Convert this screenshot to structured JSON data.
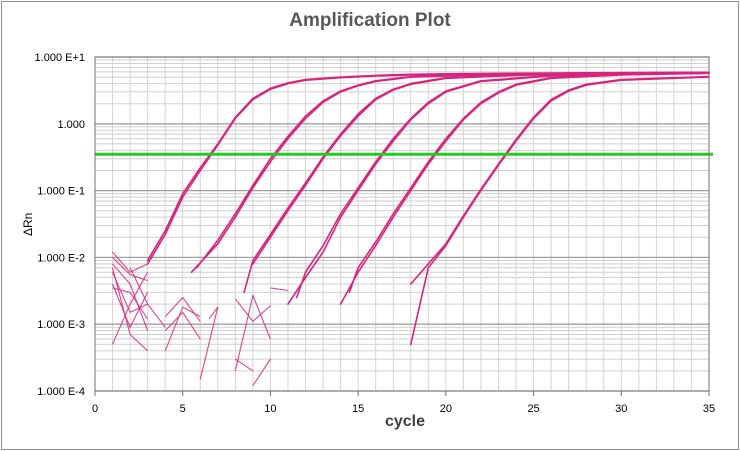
{
  "chart_data": {
    "type": "line",
    "title": "Amplification Plot",
    "xlabel": "cycle",
    "ylabel": "ΔRn",
    "xlim": [
      0,
      35
    ],
    "ylim": [
      0.0001,
      10
    ],
    "y_scale": "log",
    "grid": true,
    "x_ticks": [
      0,
      5,
      10,
      15,
      20,
      25,
      30,
      35
    ],
    "x_tick_labels": [
      "0",
      "5",
      "10",
      "15",
      "20",
      "25",
      "30",
      "35"
    ],
    "y_ticks": [
      0.0001,
      0.001,
      0.01,
      0.1,
      1,
      10
    ],
    "y_tick_labels": [
      "1.000 E-4",
      "1.000 E-3",
      "1.000 E-2",
      "1.000 E-1",
      "1.000",
      "1.000 E+1"
    ],
    "threshold": {
      "value": 0.35,
      "color": "#22cc22"
    },
    "curve_color": "#d6247f",
    "series": [
      {
        "x": [
          3,
          4,
          5,
          6,
          7,
          8,
          9,
          10,
          11,
          12,
          14,
          16,
          18,
          20,
          24,
          28,
          35
        ],
        "y": [
          0.008,
          0.022,
          0.08,
          0.2,
          0.48,
          1.2,
          2.3,
          3.3,
          4.0,
          4.5,
          4.9,
          5.2,
          5.4,
          5.5,
          5.6,
          5.7,
          5.8
        ]
      },
      {
        "x": [
          3,
          4,
          5,
          6,
          7,
          8,
          9,
          10,
          11,
          12,
          14,
          16,
          18,
          20,
          24,
          28,
          35
        ],
        "y": [
          0.009,
          0.025,
          0.09,
          0.22,
          0.5,
          1.25,
          2.4,
          3.4,
          4.1,
          4.6,
          5.0,
          5.3,
          5.5,
          5.6,
          5.7,
          5.8,
          5.9
        ]
      },
      {
        "x": [
          5.5,
          7,
          8,
          9,
          10,
          11,
          12,
          13,
          14,
          15,
          16,
          18,
          22,
          26,
          35
        ],
        "y": [
          0.006,
          0.016,
          0.04,
          0.11,
          0.27,
          0.6,
          1.2,
          2.1,
          3.0,
          3.7,
          4.3,
          5.0,
          5.4,
          5.6,
          5.8
        ]
      },
      {
        "x": [
          5.8,
          7,
          8,
          9,
          10,
          11,
          12,
          13,
          14,
          15,
          16,
          18,
          22,
          26,
          35
        ],
        "y": [
          0.007,
          0.018,
          0.045,
          0.12,
          0.3,
          0.65,
          1.3,
          2.2,
          3.1,
          3.8,
          4.4,
          5.1,
          5.5,
          5.7,
          5.9
        ]
      },
      {
        "x": [
          8.5,
          9,
          10,
          11,
          12,
          13,
          14,
          15,
          16,
          17,
          18,
          20,
          24,
          28,
          35
        ],
        "y": [
          0.003,
          0.009,
          0.022,
          0.055,
          0.13,
          0.32,
          0.7,
          1.4,
          2.4,
          3.3,
          4.0,
          4.9,
          5.4,
          5.6,
          5.8
        ]
      },
      {
        "x": [
          9,
          10,
          11,
          12,
          13,
          14,
          15,
          16,
          17,
          18,
          20,
          24,
          28,
          35
        ],
        "y": [
          0.008,
          0.02,
          0.05,
          0.12,
          0.3,
          0.66,
          1.3,
          2.3,
          3.2,
          3.9,
          4.8,
          5.3,
          5.6,
          5.8
        ]
      },
      {
        "x": [
          11,
          12,
          13,
          14,
          15,
          16,
          17,
          18,
          19,
          20,
          22,
          26,
          30,
          35
        ],
        "y": [
          0.002,
          0.005,
          0.012,
          0.04,
          0.1,
          0.25,
          0.55,
          1.15,
          2.0,
          3.0,
          4.3,
          5.2,
          5.5,
          5.7
        ]
      },
      {
        "x": [
          11.5,
          12,
          13,
          14,
          15,
          16,
          17,
          18,
          19,
          20,
          22,
          26,
          30,
          35
        ],
        "y": [
          0.0025,
          0.006,
          0.015,
          0.045,
          0.11,
          0.27,
          0.6,
          1.2,
          2.1,
          3.1,
          4.4,
          5.3,
          5.6,
          5.8
        ]
      },
      {
        "x": [
          14,
          15,
          16,
          17,
          18,
          19,
          20,
          21,
          22,
          23,
          24,
          26,
          30,
          35
        ],
        "y": [
          0.002,
          0.006,
          0.015,
          0.04,
          0.1,
          0.25,
          0.55,
          1.15,
          2.0,
          2.9,
          3.8,
          4.8,
          5.4,
          5.7
        ]
      },
      {
        "x": [
          14.5,
          15,
          16,
          17,
          18,
          19,
          20,
          21,
          22,
          23,
          24,
          26,
          30,
          35
        ],
        "y": [
          0.003,
          0.007,
          0.017,
          0.045,
          0.11,
          0.27,
          0.6,
          1.2,
          2.1,
          3.0,
          3.9,
          4.9,
          5.5,
          5.8
        ]
      },
      {
        "x": [
          18,
          19,
          20,
          21,
          22,
          23,
          24,
          25,
          26,
          27,
          28,
          30,
          35
        ],
        "y": [
          0.0005,
          0.007,
          0.015,
          0.04,
          0.1,
          0.24,
          0.55,
          1.2,
          2.2,
          3.1,
          3.8,
          4.5,
          5.0
        ]
      },
      {
        "x": [
          18,
          19,
          20,
          21,
          22,
          23,
          24,
          25,
          26,
          27,
          28,
          30,
          35
        ],
        "y": [
          0.004,
          0.008,
          0.016,
          0.042,
          0.105,
          0.25,
          0.58,
          1.25,
          2.3,
          3.2,
          3.9,
          4.6,
          5.1
        ]
      }
    ],
    "noise_segments": [
      {
        "x": [
          1,
          2,
          3
        ],
        "y": [
          0.012,
          0.006,
          0.008
        ]
      },
      {
        "x": [
          1,
          2,
          3
        ],
        "y": [
          0.008,
          0.004,
          0.0008
        ]
      },
      {
        "x": [
          1,
          2,
          3
        ],
        "y": [
          0.006,
          0.0015,
          0.002
        ]
      },
      {
        "x": [
          1,
          2,
          3
        ],
        "y": [
          0.004,
          0.0009,
          0.003
        ]
      },
      {
        "x": [
          1,
          2,
          3
        ],
        "y": [
          0.0035,
          0.003,
          0.0012
        ]
      },
      {
        "x": [
          1,
          2,
          3
        ],
        "y": [
          0.01,
          0.0055,
          0.0045
        ]
      },
      {
        "x": [
          1,
          2,
          3
        ],
        "y": [
          0.007,
          0.0007,
          0.0004
        ]
      },
      {
        "x": [
          1,
          2,
          3
        ],
        "y": [
          0.0005,
          0.002,
          0.006
        ]
      },
      {
        "x": [
          2,
          3,
          4
        ],
        "y": [
          0.007,
          0.002,
          0.0009
        ]
      },
      {
        "x": [
          4,
          5,
          6
        ],
        "y": [
          0.0013,
          0.0025,
          0.0011
        ]
      },
      {
        "x": [
          4,
          5,
          6
        ],
        "y": [
          0.0008,
          0.0015,
          0.0006
        ]
      },
      {
        "x": [
          4,
          5,
          6
        ],
        "y": [
          0.0004,
          0.0018,
          0.0013
        ]
      },
      {
        "x": [
          6,
          7
        ],
        "y": [
          0.00015,
          0.0018
        ]
      },
      {
        "x": [
          6.5,
          7
        ],
        "y": [
          0.0012,
          0.0018
        ]
      },
      {
        "x": [
          8,
          9,
          10
        ],
        "y": [
          0.0002,
          0.0027,
          0.0006
        ]
      },
      {
        "x": [
          8,
          9,
          10
        ],
        "y": [
          0.0024,
          0.0011,
          0.0019
        ]
      },
      {
        "x": [
          8,
          9
        ],
        "y": [
          0.0003,
          0.0002
        ]
      },
      {
        "x": [
          9,
          10
        ],
        "y": [
          0.00012,
          0.0003
        ]
      },
      {
        "x": [
          10,
          11
        ],
        "y": [
          0.0035,
          0.0032
        ]
      }
    ]
  }
}
